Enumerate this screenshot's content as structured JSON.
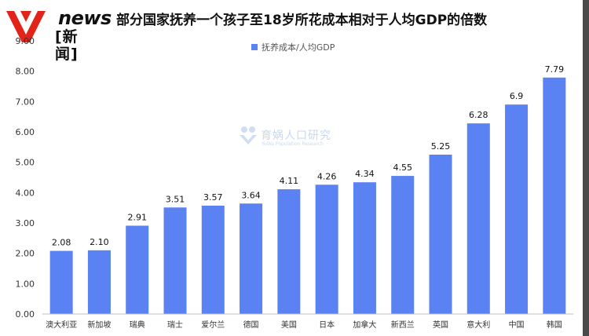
{
  "header": {
    "logo_top": "news",
    "logo_bottom": "[新 闻]",
    "title": "部分国家抚养一个孩子至18岁所花成本相对于人均GDP的倍数"
  },
  "watermark": {
    "name": "育娲人口研究",
    "subtitle": "YuWa Population Research"
  },
  "colors": {
    "bar": "#5b82f2",
    "logo_red": "#e2231a"
  },
  "chart_data": {
    "type": "bar",
    "title": "部分国家抚养一个孩子至18岁所花成本相对于人均GDP的倍数",
    "xlabel": "",
    "ylabel": "",
    "legend": "top-center",
    "grid": false,
    "ylim": [
      0,
      9
    ],
    "yticks": [
      "0.00",
      "1.00",
      "2.00",
      "3.00",
      "4.00",
      "5.00",
      "6.00",
      "7.00",
      "8.00",
      "9.00"
    ],
    "categories": [
      "澳大利亚",
      "新加坡",
      "瑞典",
      "瑞士",
      "爱尔兰",
      "德国",
      "美国",
      "日本",
      "加拿大",
      "新西兰",
      "英国",
      "意大利",
      "中国",
      "韩国"
    ],
    "series": [
      {
        "name": "抚养成本/人均GDP",
        "values": [
          2.08,
          2.1,
          2.91,
          3.51,
          3.57,
          3.64,
          4.11,
          4.26,
          4.34,
          4.55,
          5.25,
          6.28,
          6.9,
          7.79
        ],
        "labels": [
          "2.08",
          "2.10",
          "2.91",
          "3.51",
          "3.57",
          "3.64",
          "4.11",
          "4.26",
          "4.34",
          "4.55",
          "5.25",
          "6.28",
          "6.9",
          "7.79"
        ]
      }
    ]
  }
}
